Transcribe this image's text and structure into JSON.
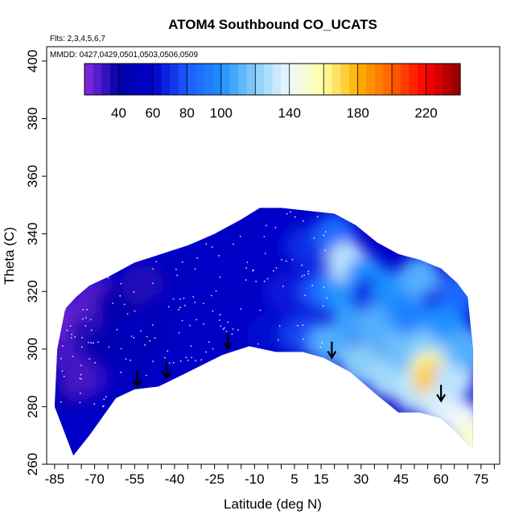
{
  "chart_data": {
    "type": "heatmap",
    "title": "ATOM4 Southbound CO_UCATS",
    "annotations": {
      "flights": "Flts: 2,3,4,5,6,7",
      "dates": "MMDD: 0427,0429,0501,0503,0506,0509"
    },
    "xlabel": "Latitude (deg N)",
    "ylabel": "Theta (C)",
    "xlim": [
      -88,
      82
    ],
    "ylim": [
      260,
      405
    ],
    "x_ticks": [
      -85,
      -70,
      -55,
      -40,
      -25,
      -10,
      5,
      15,
      30,
      45,
      60,
      75
    ],
    "y_ticks": [
      260,
      280,
      300,
      320,
      340,
      360,
      380,
      400
    ],
    "colorbar": {
      "range": [
        20,
        240
      ],
      "tick_values": [
        40,
        60,
        80,
        100,
        140,
        180,
        220
      ],
      "stops": [
        {
          "value": 20,
          "color": "#8a2be2"
        },
        {
          "value": 40,
          "color": "#0000a8"
        },
        {
          "value": 60,
          "color": "#0000cd"
        },
        {
          "value": 80,
          "color": "#1e5aff"
        },
        {
          "value": 100,
          "color": "#1e90ff"
        },
        {
          "value": 120,
          "color": "#87cefa"
        },
        {
          "value": 140,
          "color": "#f0f8ff"
        },
        {
          "value": 160,
          "color": "#ffffa0"
        },
        {
          "value": 180,
          "color": "#ffb000"
        },
        {
          "value": 200,
          "color": "#ff6000"
        },
        {
          "value": 220,
          "color": "#ff0000"
        },
        {
          "value": 240,
          "color": "#8b0000"
        }
      ]
    },
    "bottom_boundary": [
      [
        -78,
        263
      ],
      [
        -72,
        270
      ],
      [
        -62,
        283
      ],
      [
        -55,
        286
      ],
      [
        -46,
        287
      ],
      [
        -35,
        292
      ],
      [
        -22,
        298
      ],
      [
        -12,
        301
      ],
      [
        -2,
        299
      ],
      [
        8,
        299
      ],
      [
        16,
        297
      ],
      [
        26,
        292
      ],
      [
        36,
        284
      ],
      [
        44,
        278
      ],
      [
        52,
        278
      ],
      [
        60,
        276
      ],
      [
        66,
        271
      ],
      [
        71,
        266
      ]
    ],
    "top_boundary": [
      [
        -85,
        280
      ],
      [
        -84,
        300
      ],
      [
        -81,
        314
      ],
      [
        -77,
        318
      ],
      [
        -72,
        322
      ],
      [
        -65,
        325
      ],
      [
        -55,
        330
      ],
      [
        -45,
        333
      ],
      [
        -35,
        336
      ],
      [
        -25,
        340
      ],
      [
        -15,
        345
      ],
      [
        -8,
        349
      ],
      [
        0,
        349
      ],
      [
        10,
        348
      ],
      [
        20,
        347
      ],
      [
        28,
        343
      ],
      [
        36,
        337
      ],
      [
        44,
        333
      ],
      [
        52,
        331
      ],
      [
        60,
        328
      ],
      [
        66,
        323
      ],
      [
        70,
        318
      ],
      [
        72,
        300
      ],
      [
        72,
        266
      ]
    ],
    "samples": [
      {
        "lat": -83,
        "theta": 300,
        "co": 30
      },
      {
        "lat": -80,
        "theta": 310,
        "co": 25
      },
      {
        "lat": -78,
        "theta": 285,
        "co": 45
      },
      {
        "lat": -75,
        "theta": 290,
        "co": 30
      },
      {
        "lat": -72,
        "theta": 305,
        "co": 35
      },
      {
        "lat": -70,
        "theta": 318,
        "co": 28
      },
      {
        "lat": -70,
        "theta": 278,
        "co": 55
      },
      {
        "lat": -65,
        "theta": 300,
        "co": 45
      },
      {
        "lat": -62,
        "theta": 315,
        "co": 42
      },
      {
        "lat": -58,
        "theta": 290,
        "co": 52
      },
      {
        "lat": -52,
        "theta": 322,
        "co": 35
      },
      {
        "lat": -50,
        "theta": 300,
        "co": 48
      },
      {
        "lat": -45,
        "theta": 312,
        "co": 50
      },
      {
        "lat": -40,
        "theta": 295,
        "co": 55
      },
      {
        "lat": -38,
        "theta": 328,
        "co": 52
      },
      {
        "lat": -32,
        "theta": 308,
        "co": 55
      },
      {
        "lat": -25,
        "theta": 320,
        "co": 55
      },
      {
        "lat": -20,
        "theta": 300,
        "co": 58
      },
      {
        "lat": -18,
        "theta": 338,
        "co": 55
      },
      {
        "lat": -10,
        "theta": 320,
        "co": 55
      },
      {
        "lat": -5,
        "theta": 305,
        "co": 62
      },
      {
        "lat": 0,
        "theta": 340,
        "co": 60
      },
      {
        "lat": 2,
        "theta": 320,
        "co": 65
      },
      {
        "lat": 8,
        "theta": 305,
        "co": 75
      },
      {
        "lat": 10,
        "theta": 335,
        "co": 70
      },
      {
        "lat": 15,
        "theta": 320,
        "co": 80
      },
      {
        "lat": 18,
        "theta": 302,
        "co": 110
      },
      {
        "lat": 20,
        "theta": 340,
        "co": 85
      },
      {
        "lat": 22,
        "theta": 320,
        "co": 100
      },
      {
        "lat": 25,
        "theta": 330,
        "co": 130
      },
      {
        "lat": 27,
        "theta": 310,
        "co": 105
      },
      {
        "lat": 30,
        "theta": 295,
        "co": 120
      },
      {
        "lat": 32,
        "theta": 325,
        "co": 100
      },
      {
        "lat": 34,
        "theta": 318,
        "co": 70
      },
      {
        "lat": 36,
        "theta": 308,
        "co": 110
      },
      {
        "lat": 40,
        "theta": 290,
        "co": 125
      },
      {
        "lat": 42,
        "theta": 320,
        "co": 100
      },
      {
        "lat": 45,
        "theta": 300,
        "co": 115
      },
      {
        "lat": 48,
        "theta": 312,
        "co": 95
      },
      {
        "lat": 50,
        "theta": 285,
        "co": 130
      },
      {
        "lat": 52,
        "theta": 325,
        "co": 110
      },
      {
        "lat": 55,
        "theta": 300,
        "co": 120
      },
      {
        "lat": 56,
        "theta": 292,
        "co": 160
      },
      {
        "lat": 58,
        "theta": 289,
        "co": 175
      },
      {
        "lat": 60,
        "theta": 280,
        "co": 135
      },
      {
        "lat": 62,
        "theta": 310,
        "co": 100
      },
      {
        "lat": 65,
        "theta": 290,
        "co": 130
      },
      {
        "lat": 67,
        "theta": 320,
        "co": 85
      },
      {
        "lat": 68,
        "theta": 275,
        "co": 140
      },
      {
        "lat": 70,
        "theta": 300,
        "co": 110
      },
      {
        "lat": 72,
        "theta": 268,
        "co": 150
      }
    ],
    "arrows": [
      {
        "lat": -54,
        "theta": 287
      },
      {
        "lat": -43,
        "theta": 290
      },
      {
        "lat": -20,
        "theta": 300
      },
      {
        "lat": 19,
        "theta": 297
      },
      {
        "lat": 60,
        "theta": 282
      }
    ]
  }
}
